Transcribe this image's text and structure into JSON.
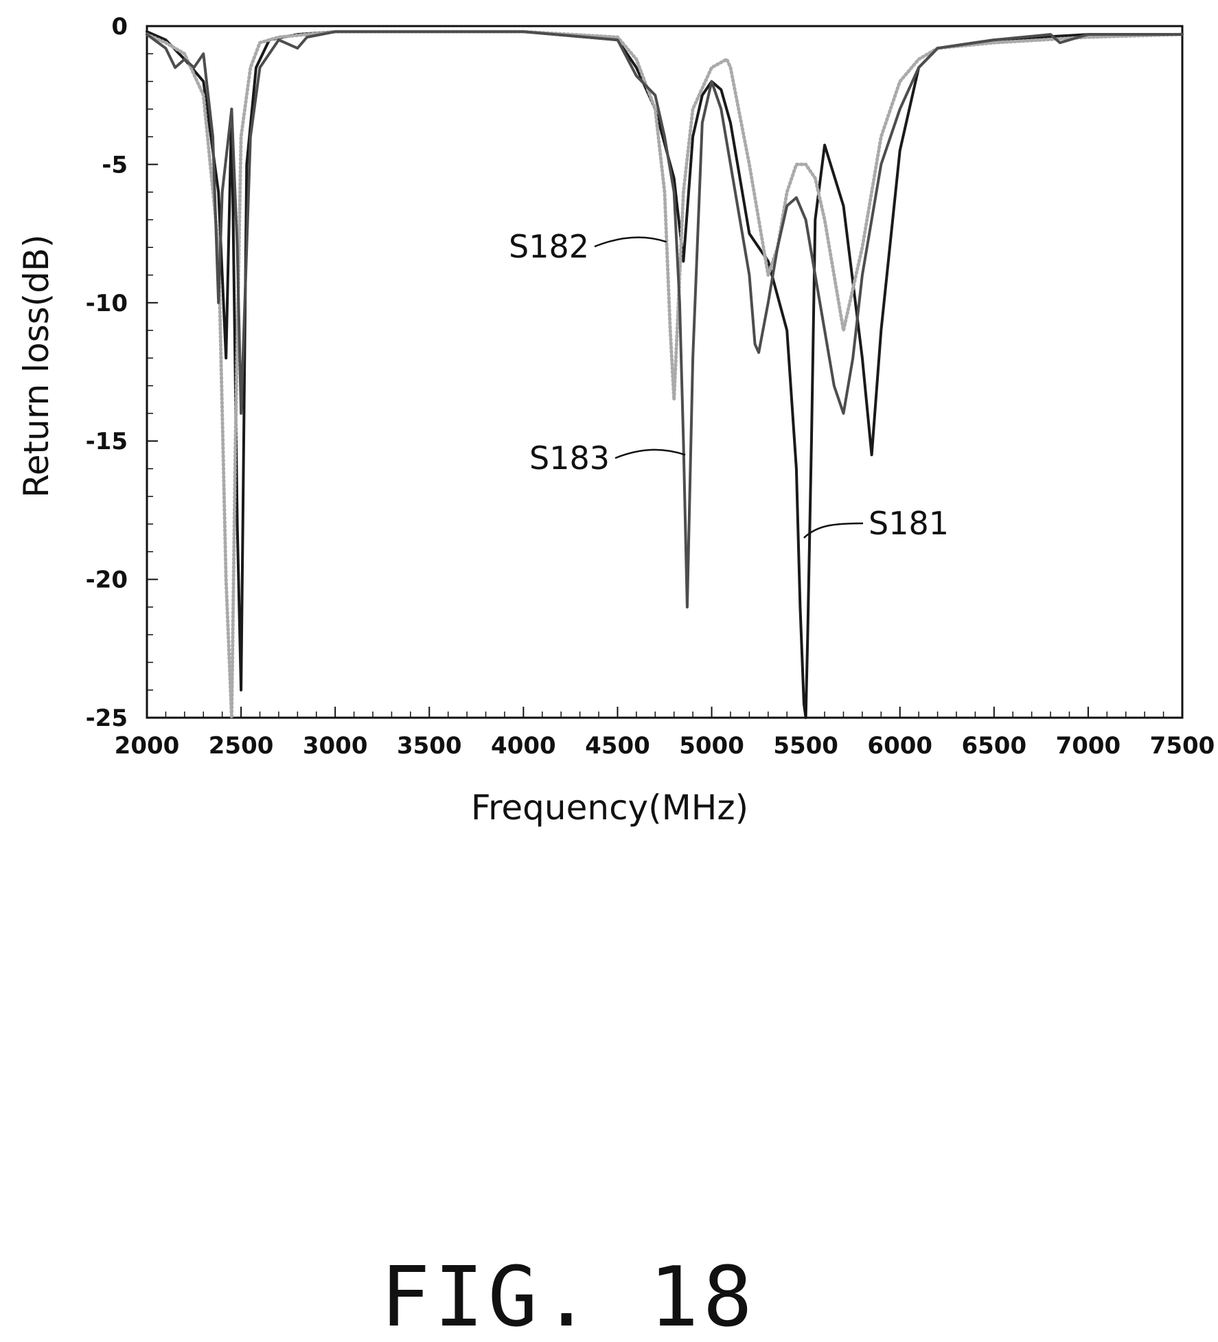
{
  "chart_data": {
    "type": "line",
    "title": "",
    "xlabel": "Frequency(MHz)",
    "ylabel": "Return loss(dB)",
    "xlim": [
      2000,
      7500
    ],
    "ylim": [
      -25,
      0
    ],
    "x_ticks": [
      2000,
      2500,
      3000,
      3500,
      4000,
      4500,
      5000,
      5500,
      6000,
      6500,
      7000,
      7500
    ],
    "y_ticks": [
      0,
      -5,
      -10,
      -15,
      -20,
      -25
    ],
    "grid": false,
    "legend": "none",
    "series": [
      {
        "name": "S181",
        "color": "#1a1a1a",
        "style": "solid",
        "x": [
          2000,
          2100,
          2200,
          2300,
          2380,
          2420,
          2450,
          2480,
          2500,
          2530,
          2580,
          2650,
          2800,
          3000,
          3500,
          4000,
          4500,
          4600,
          4700,
          4800,
          4850,
          4900,
          4950,
          5000,
          5050,
          5100,
          5150,
          5200,
          5300,
          5400,
          5450,
          5470,
          5490,
          5500,
          5510,
          5530,
          5550,
          5600,
          5700,
          5800,
          5850,
          5900,
          6000,
          6100,
          6200,
          6500,
          7000,
          7500
        ],
        "y": [
          -0.2,
          -0.5,
          -1.2,
          -2.0,
          -6.0,
          -12.0,
          -3.0,
          -18.0,
          -24.0,
          -5.0,
          -1.5,
          -0.5,
          -0.3,
          -0.2,
          -0.2,
          -0.2,
          -0.5,
          -1.5,
          -3.0,
          -5.5,
          -8.5,
          -4.0,
          -2.5,
          -2.0,
          -2.3,
          -3.5,
          -5.5,
          -7.5,
          -8.5,
          -11.0,
          -16.0,
          -21.0,
          -24.5,
          -25.0,
          -22.0,
          -15.0,
          -7.0,
          -4.3,
          -6.5,
          -12.0,
          -15.5,
          -11.0,
          -4.5,
          -1.5,
          -0.8,
          -0.5,
          -0.3,
          -0.3
        ]
      },
      {
        "name": "S182",
        "color": "#aaaaaa",
        "style": "dotted",
        "x": [
          2000,
          2100,
          2200,
          2300,
          2380,
          2420,
          2450,
          2470,
          2500,
          2550,
          2600,
          2700,
          3000,
          3500,
          4000,
          4500,
          4600,
          4700,
          4750,
          4780,
          4800,
          4850,
          4900,
          5000,
          5080,
          5100,
          5200,
          5300,
          5350,
          5400,
          5450,
          5500,
          5550,
          5600,
          5700,
          5800,
          5900,
          6000,
          6100,
          6200,
          6500,
          7000,
          7500
        ],
        "y": [
          -0.3,
          -0.6,
          -1.0,
          -2.5,
          -8.0,
          -20.0,
          -25.0,
          -15.0,
          -4.0,
          -1.5,
          -0.6,
          -0.4,
          -0.2,
          -0.2,
          -0.2,
          -0.4,
          -1.2,
          -3.0,
          -6.0,
          -11.0,
          -13.5,
          -6.0,
          -3.0,
          -1.5,
          -1.2,
          -1.5,
          -5.0,
          -9.0,
          -8.0,
          -6.0,
          -5.0,
          -5.0,
          -5.5,
          -7.0,
          -11.0,
          -8.0,
          -4.0,
          -2.0,
          -1.2,
          -0.8,
          -0.6,
          -0.4,
          -0.3
        ]
      },
      {
        "name": "S183",
        "color": "#4d4d4d",
        "style": "solid",
        "x": [
          2000,
          2100,
          2150,
          2200,
          2250,
          2300,
          2350,
          2380,
          2400,
          2450,
          2480,
          2500,
          2550,
          2600,
          2700,
          2800,
          2850,
          3000,
          3500,
          4000,
          4500,
          4600,
          4700,
          4750,
          4800,
          4830,
          4850,
          4870,
          4900,
          4950,
          5000,
          5050,
          5100,
          5150,
          5200,
          5230,
          5250,
          5300,
          5350,
          5400,
          5450,
          5500,
          5550,
          5600,
          5650,
          5700,
          5750,
          5800,
          5900,
          6000,
          6100,
          6200,
          6500,
          6800,
          6850,
          7000,
          7500
        ],
        "y": [
          -0.3,
          -0.8,
          -1.5,
          -1.2,
          -1.5,
          -1.0,
          -4.0,
          -10.0,
          -6.0,
          -3.0,
          -8.0,
          -14.0,
          -4.0,
          -1.5,
          -0.5,
          -0.8,
          -0.4,
          -0.2,
          -0.2,
          -0.2,
          -0.5,
          -1.8,
          -2.5,
          -4.0,
          -6.0,
          -10.0,
          -15.0,
          -21.0,
          -12.0,
          -3.5,
          -2.0,
          -3.0,
          -5.0,
          -7.0,
          -9.0,
          -11.5,
          -11.8,
          -10.0,
          -8.0,
          -6.5,
          -6.2,
          -7.0,
          -9.0,
          -11.0,
          -13.0,
          -14.0,
          -12.0,
          -9.0,
          -5.0,
          -3.0,
          -1.5,
          -0.8,
          -0.5,
          -0.3,
          -0.6,
          -0.3,
          -0.3
        ]
      }
    ],
    "annotations": [
      {
        "label": "S182",
        "target_x": 4760,
        "target_y": -7.8
      },
      {
        "label": "S183",
        "target_x": 4860,
        "target_y": -15.5
      },
      {
        "label": "S181",
        "target_x": 5490,
        "target_y": -18.5
      }
    ]
  },
  "figure": {
    "caption": "FIG. 18"
  }
}
